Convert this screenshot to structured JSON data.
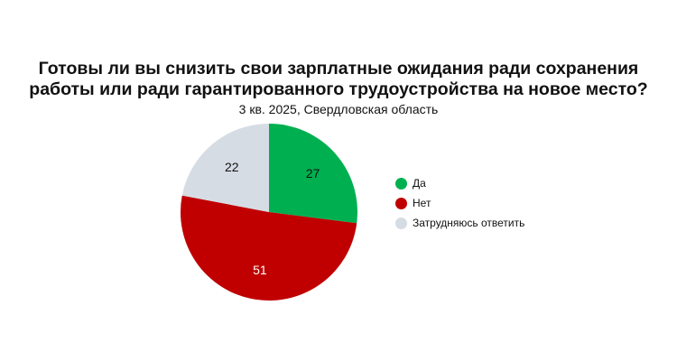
{
  "chart_data": {
    "type": "pie",
    "title_lines": [
      "Готовы ли вы снизить свои зарплатные ожидания ради сохранения",
      "работы или ради гарантированного трудоустройства на новое место?"
    ],
    "subtitle": "3 кв. 2025, Свердловская область",
    "legend_position": "right",
    "slices": [
      {
        "name": "Да",
        "value": 27,
        "color": "#00b050",
        "label_color": "#111111"
      },
      {
        "name": "Нет",
        "value": 51,
        "color": "#c00000",
        "label_color": "#ffffff"
      },
      {
        "name": "Затрудняюсь ответить",
        "value": 22,
        "color": "#d6dce4",
        "label_color": "#111111"
      }
    ]
  }
}
